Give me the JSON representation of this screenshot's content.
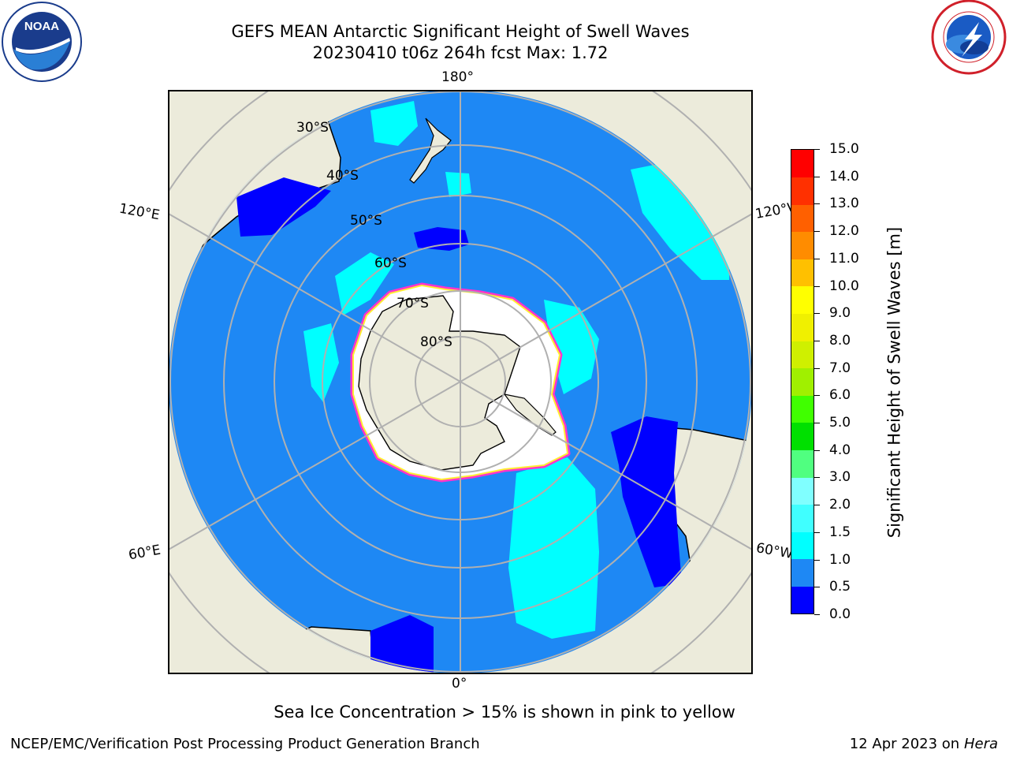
{
  "title": {
    "line1": "GEFS MEAN Antarctic Significant Height of Swell Waves",
    "line2": "20230410 t06z 264h fcst   Max: 1.72"
  },
  "map": {
    "projection": "south polar stereographic",
    "longitude_labels": {
      "top": "180°",
      "bottom": "0°",
      "upper_left": "120°E",
      "upper_right": "120°W",
      "lower_left": "60°E",
      "lower_right": "60°W"
    },
    "latitude_labels": [
      "30°S",
      "40°S",
      "50°S",
      "60°S",
      "70°S",
      "80°S"
    ],
    "colors": {
      "land": "#ecebdb",
      "ocean_fill": "#1e88f4",
      "low_swell": "#0000ff",
      "mid_swell": "#00ffff",
      "sea_ice_edge": "#ff33cc",
      "sea_ice_inner": "#ffff33",
      "grid": "#b0b0b0"
    }
  },
  "colorbar": {
    "title": "Significant Height of Swell Waves [m]",
    "ticks": [
      "0.0",
      "0.5",
      "1.0",
      "1.5",
      "2.0",
      "3.0",
      "4.0",
      "5.0",
      "6.0",
      "7.0",
      "8.0",
      "9.0",
      "10.0",
      "11.0",
      "12.0",
      "13.0",
      "14.0",
      "15.0"
    ],
    "colors": [
      "#0000ff",
      "#1e88f4",
      "#00ffff",
      "#40ffff",
      "#80ffff",
      "#50ff80",
      "#00e000",
      "#40ff00",
      "#a0f000",
      "#cff000",
      "#f0f000",
      "#ffff00",
      "#ffc000",
      "#ff8c00",
      "#ff6000",
      "#ff3000",
      "#ff0000"
    ]
  },
  "logos": {
    "left": {
      "name": "NOAA",
      "ring_text": "NATIONAL OCEANIC AND ATMOSPHERIC ADMINISTRATION · U.S. DEPARTMENT OF COMMERCE"
    },
    "right": {
      "name": "NATIONAL WEATHER SERVICE"
    }
  },
  "footnote": "Sea Ice Concentration > 15% is shown in pink to yellow",
  "credit_left": "NCEP/EMC/Verification Post Processing Product Generation Branch",
  "credit_right": {
    "date": "12 Apr 2023 on",
    "host": "Hera"
  }
}
